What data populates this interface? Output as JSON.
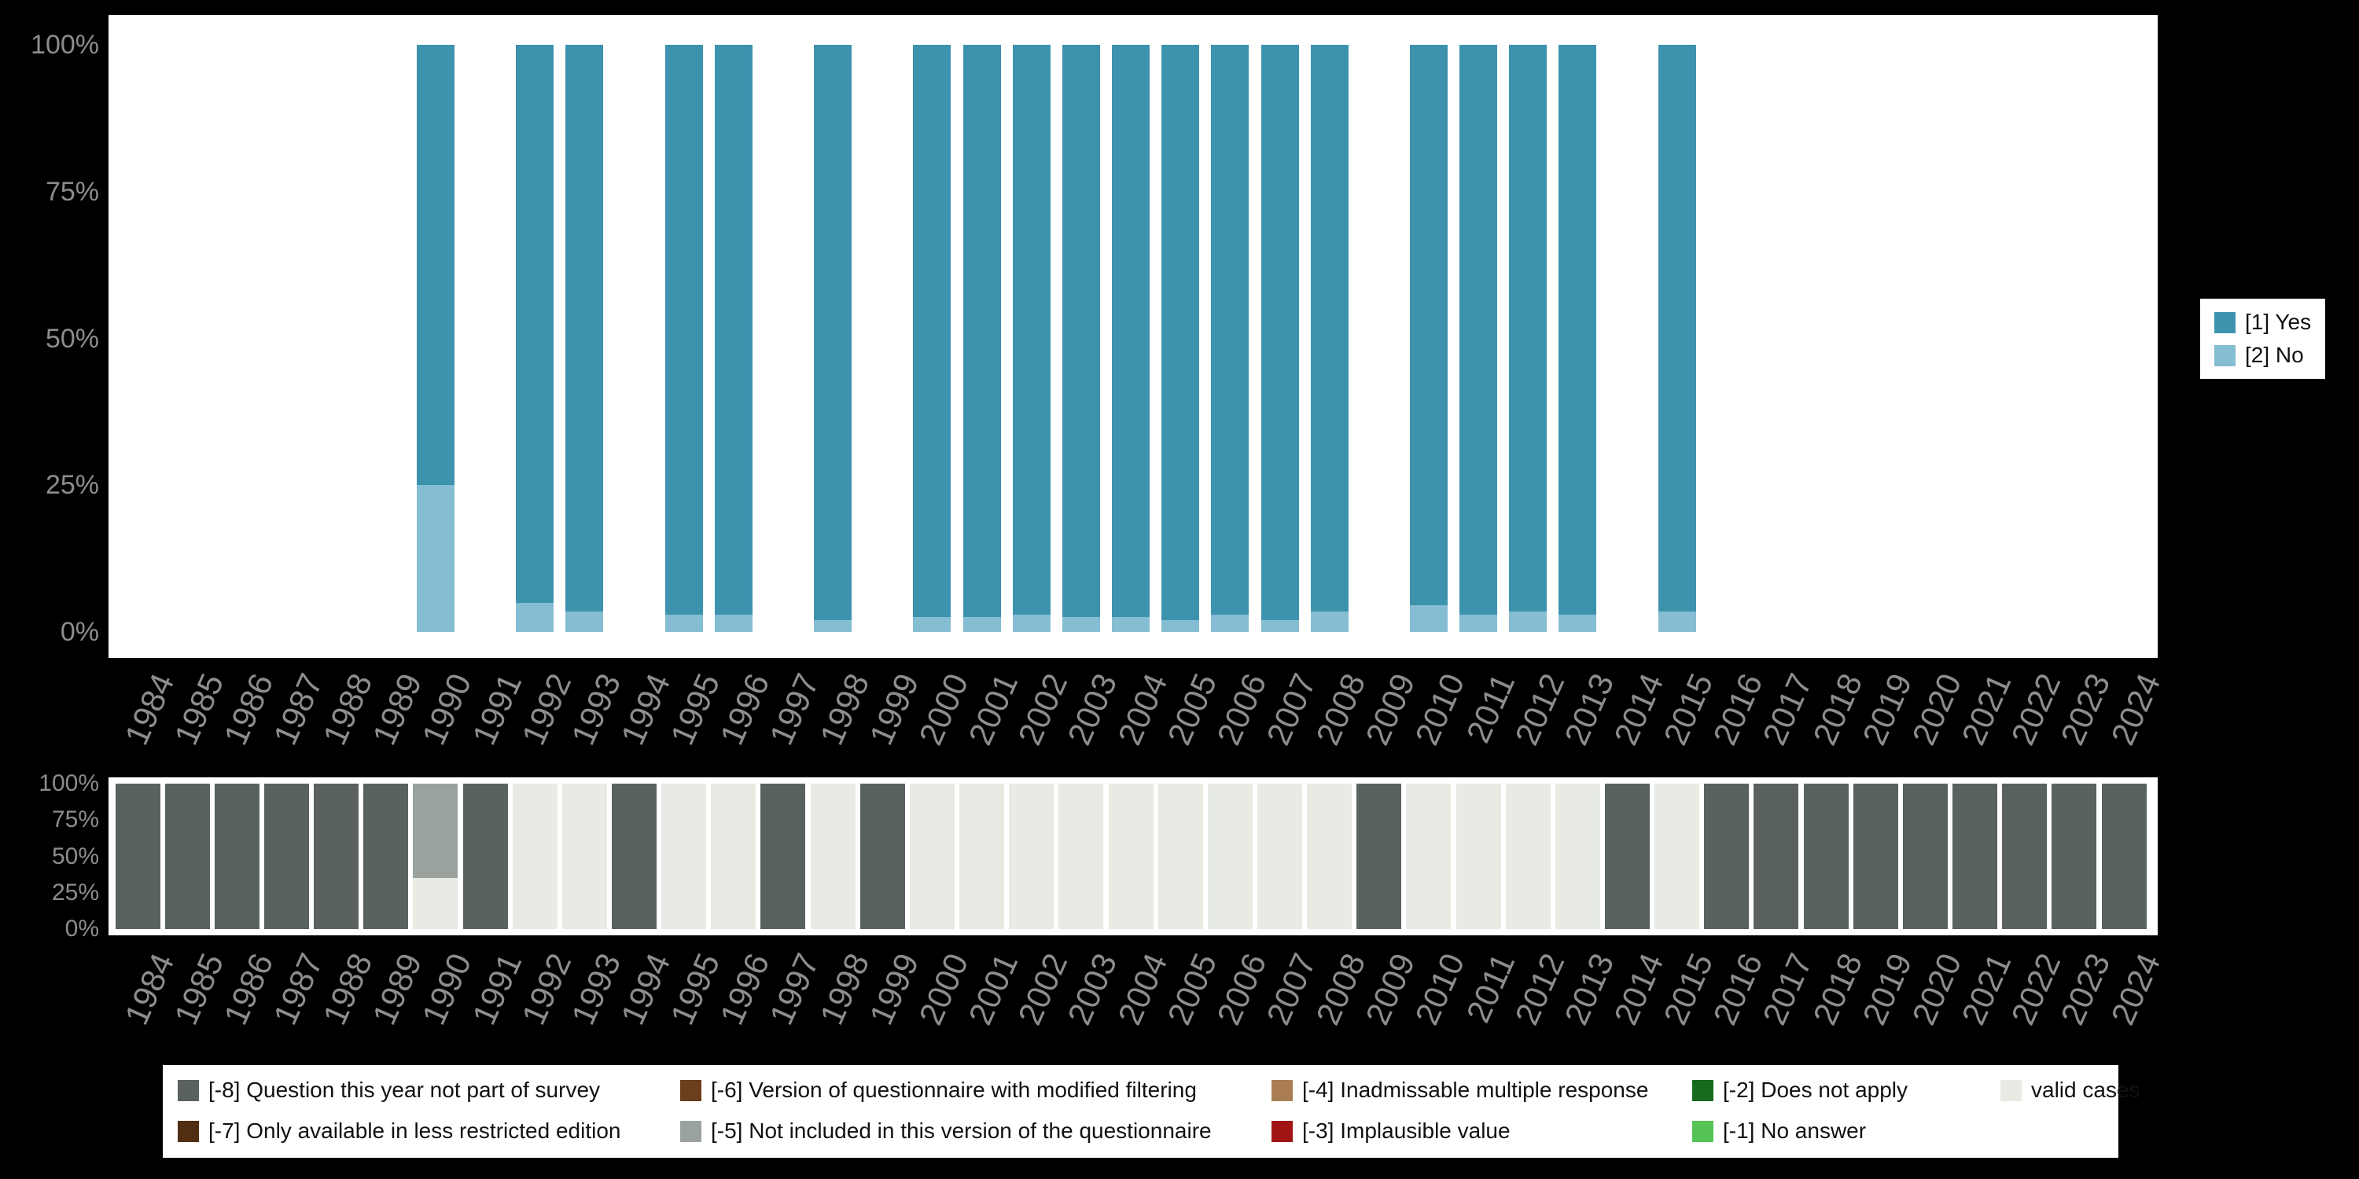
{
  "colors": {
    "background": "#000000",
    "panel": "#ffffff",
    "axis_text": "#8d8d8d",
    "legend_text": "#111111",
    "yes": "#3d93ae",
    "no": "#85bdd2",
    "m8": "#5a625f",
    "m7": "#512e10",
    "m6": "#6b3e1d",
    "m5": "#9aa29e",
    "m4": "#aa7e52",
    "m3": "#a01414",
    "m2": "#176b1e",
    "m1": "#55c455",
    "valid": "#e7ebe3"
  },
  "x_years": [
    1984,
    1985,
    1986,
    1987,
    1988,
    1989,
    1990,
    1991,
    1992,
    1993,
    1994,
    1995,
    1996,
    1997,
    1998,
    1999,
    2000,
    2001,
    2002,
    2003,
    2004,
    2005,
    2006,
    2007,
    2008,
    2009,
    2010,
    2011,
    2012,
    2013,
    2014,
    2015,
    2016,
    2017,
    2018,
    2019,
    2020,
    2021,
    2022,
    2023,
    2024
  ],
  "y_tick_labels": [
    "0%",
    "25%",
    "50%",
    "75%",
    "100%"
  ],
  "legend_top": {
    "items": [
      {
        "label": "[1] Yes",
        "color_key": "yes"
      },
      {
        "label": "[2] No",
        "color_key": "no"
      }
    ]
  },
  "legend_bottom": {
    "columns": [
      [
        {
          "label": "[-8] Question this year not part of survey",
          "color_key": "m8"
        },
        {
          "label": "[-7] Only available in less restricted edition",
          "color_key": "m7"
        }
      ],
      [
        {
          "label": "[-6] Version of questionnaire with modified filtering",
          "color_key": "m6"
        },
        {
          "label": "[-5] Not included in this version of the questionnaire",
          "color_key": "m5"
        }
      ],
      [
        {
          "label": "[-4] Inadmissable multiple response",
          "color_key": "m4"
        },
        {
          "label": "[-3] Implausible value",
          "color_key": "m3"
        }
      ],
      [
        {
          "label": "[-2] Does not apply",
          "color_key": "m2"
        },
        {
          "label": "[-1] No answer",
          "color_key": "m1"
        }
      ],
      [
        {
          "label": "valid cases",
          "color_key": "valid"
        }
      ]
    ]
  },
  "chart_data": [
    {
      "type": "bar",
      "stacked": true,
      "title": "",
      "xlabel": "",
      "ylabel": "",
      "x_range": [
        1984,
        2024
      ],
      "ylim": [
        0,
        100
      ],
      "yticks": [
        0,
        25,
        50,
        75,
        100
      ],
      "grid": false,
      "legend": [
        "[1] Yes",
        "[2] No"
      ],
      "legend_position": "right",
      "note": "Percent per survey year; segments listed bottom-up; years absent have no bar",
      "bars": [
        {
          "year": 1990,
          "segments": [
            [
              "no",
              25
            ],
            [
              "yes",
              75
            ]
          ]
        },
        {
          "year": 1992,
          "segments": [
            [
              "no",
              5
            ],
            [
              "yes",
              95
            ]
          ]
        },
        {
          "year": 1993,
          "segments": [
            [
              "no",
              3.5
            ],
            [
              "yes",
              96.5
            ]
          ]
        },
        {
          "year": 1995,
          "segments": [
            [
              "no",
              3
            ],
            [
              "yes",
              97
            ]
          ]
        },
        {
          "year": 1996,
          "segments": [
            [
              "no",
              3
            ],
            [
              "yes",
              97
            ]
          ]
        },
        {
          "year": 1998,
          "segments": [
            [
              "no",
              2
            ],
            [
              "yes",
              98
            ]
          ]
        },
        {
          "year": 2000,
          "segments": [
            [
              "no",
              2.5
            ],
            [
              "yes",
              97.5
            ]
          ]
        },
        {
          "year": 2001,
          "segments": [
            [
              "no",
              2.5
            ],
            [
              "yes",
              97.5
            ]
          ]
        },
        {
          "year": 2002,
          "segments": [
            [
              "no",
              3
            ],
            [
              "yes",
              97
            ]
          ]
        },
        {
          "year": 2003,
          "segments": [
            [
              "no",
              2.5
            ],
            [
              "yes",
              97.5
            ]
          ]
        },
        {
          "year": 2004,
          "segments": [
            [
              "no",
              2.5
            ],
            [
              "yes",
              97.5
            ]
          ]
        },
        {
          "year": 2005,
          "segments": [
            [
              "no",
              2
            ],
            [
              "yes",
              98
            ]
          ]
        },
        {
          "year": 2006,
          "segments": [
            [
              "no",
              3
            ],
            [
              "yes",
              97
            ]
          ]
        },
        {
          "year": 2007,
          "segments": [
            [
              "no",
              2
            ],
            [
              "yes",
              98
            ]
          ]
        },
        {
          "year": 2008,
          "segments": [
            [
              "no",
              3.5
            ],
            [
              "yes",
              96.5
            ]
          ]
        },
        {
          "year": 2010,
          "segments": [
            [
              "no",
              4.5
            ],
            [
              "yes",
              95.5
            ]
          ]
        },
        {
          "year": 2011,
          "segments": [
            [
              "no",
              3
            ],
            [
              "yes",
              97
            ]
          ]
        },
        {
          "year": 2012,
          "segments": [
            [
              "no",
              3.5
            ],
            [
              "yes",
              96.5
            ]
          ]
        },
        {
          "year": 2013,
          "segments": [
            [
              "no",
              3
            ],
            [
              "yes",
              97
            ]
          ]
        },
        {
          "year": 2015,
          "segments": [
            [
              "no",
              3.5
            ],
            [
              "yes",
              96.5
            ]
          ]
        }
      ]
    },
    {
      "type": "bar",
      "stacked": true,
      "title": "",
      "xlabel": "",
      "ylabel": "",
      "x_range": [
        1984,
        2024
      ],
      "ylim": [
        0,
        100
      ],
      "yticks": [
        0,
        25,
        50,
        75,
        100
      ],
      "grid": false,
      "legend_position": "bottom",
      "note": "Missing-value composition per year; segments listed bottom-up",
      "bars": [
        {
          "year": 1984,
          "segments": [
            [
              "m8",
              100
            ]
          ]
        },
        {
          "year": 1985,
          "segments": [
            [
              "m8",
              100
            ]
          ]
        },
        {
          "year": 1986,
          "segments": [
            [
              "m8",
              100
            ]
          ]
        },
        {
          "year": 1987,
          "segments": [
            [
              "m8",
              100
            ]
          ]
        },
        {
          "year": 1988,
          "segments": [
            [
              "m8",
              100
            ]
          ]
        },
        {
          "year": 1989,
          "segments": [
            [
              "m8",
              100
            ]
          ]
        },
        {
          "year": 1990,
          "segments": [
            [
              "valid",
              35
            ],
            [
              "m5",
              65
            ]
          ]
        },
        {
          "year": 1991,
          "segments": [
            [
              "m8",
              100
            ]
          ]
        },
        {
          "year": 1992,
          "segments": [
            [
              "valid",
              100
            ]
          ]
        },
        {
          "year": 1993,
          "segments": [
            [
              "valid",
              100
            ]
          ]
        },
        {
          "year": 1994,
          "segments": [
            [
              "m8",
              100
            ]
          ]
        },
        {
          "year": 1995,
          "segments": [
            [
              "valid",
              100
            ]
          ]
        },
        {
          "year": 1996,
          "segments": [
            [
              "valid",
              100
            ]
          ]
        },
        {
          "year": 1997,
          "segments": [
            [
              "m8",
              100
            ]
          ]
        },
        {
          "year": 1998,
          "segments": [
            [
              "valid",
              100
            ]
          ]
        },
        {
          "year": 1999,
          "segments": [
            [
              "m8",
              100
            ]
          ]
        },
        {
          "year": 2000,
          "segments": [
            [
              "valid",
              100
            ]
          ]
        },
        {
          "year": 2001,
          "segments": [
            [
              "valid",
              100
            ]
          ]
        },
        {
          "year": 2002,
          "segments": [
            [
              "valid",
              100
            ]
          ]
        },
        {
          "year": 2003,
          "segments": [
            [
              "valid",
              100
            ]
          ]
        },
        {
          "year": 2004,
          "segments": [
            [
              "valid",
              100
            ]
          ]
        },
        {
          "year": 2005,
          "segments": [
            [
              "valid",
              100
            ]
          ]
        },
        {
          "year": 2006,
          "segments": [
            [
              "valid",
              100
            ]
          ]
        },
        {
          "year": 2007,
          "segments": [
            [
              "valid",
              100
            ]
          ]
        },
        {
          "year": 2008,
          "segments": [
            [
              "valid",
              100
            ]
          ]
        },
        {
          "year": 2009,
          "segments": [
            [
              "m8",
              100
            ]
          ]
        },
        {
          "year": 2010,
          "segments": [
            [
              "valid",
              100
            ]
          ]
        },
        {
          "year": 2011,
          "segments": [
            [
              "valid",
              100
            ]
          ]
        },
        {
          "year": 2012,
          "segments": [
            [
              "valid",
              100
            ]
          ]
        },
        {
          "year": 2013,
          "segments": [
            [
              "valid",
              100
            ]
          ]
        },
        {
          "year": 2014,
          "segments": [
            [
              "m8",
              100
            ]
          ]
        },
        {
          "year": 2015,
          "segments": [
            [
              "valid",
              100
            ]
          ]
        },
        {
          "year": 2016,
          "segments": [
            [
              "m8",
              100
            ]
          ]
        },
        {
          "year": 2017,
          "segments": [
            [
              "m8",
              100
            ]
          ]
        },
        {
          "year": 2018,
          "segments": [
            [
              "m8",
              100
            ]
          ]
        },
        {
          "year": 2019,
          "segments": [
            [
              "m8",
              100
            ]
          ]
        },
        {
          "year": 2020,
          "segments": [
            [
              "m8",
              100
            ]
          ]
        },
        {
          "year": 2021,
          "segments": [
            [
              "m8",
              100
            ]
          ]
        },
        {
          "year": 2022,
          "segments": [
            [
              "m8",
              100
            ]
          ]
        },
        {
          "year": 2023,
          "segments": [
            [
              "m8",
              100
            ]
          ]
        },
        {
          "year": 2024,
          "segments": [
            [
              "m8",
              100
            ]
          ]
        }
      ]
    }
  ]
}
